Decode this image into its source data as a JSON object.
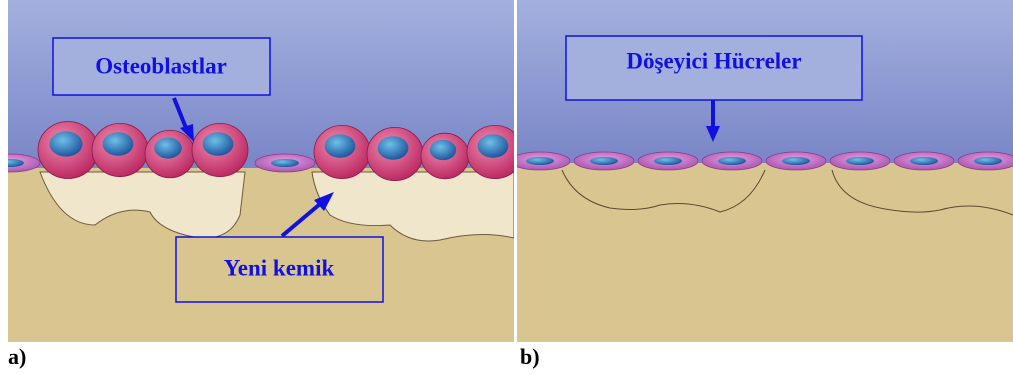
{
  "panels": [
    {
      "caption": "a)",
      "labels": [
        "Osteoblastlar",
        "Yeni kemik"
      ]
    },
    {
      "caption": "b)",
      "labels": [
        "Döşeyici Hücreler"
      ]
    }
  ]
}
